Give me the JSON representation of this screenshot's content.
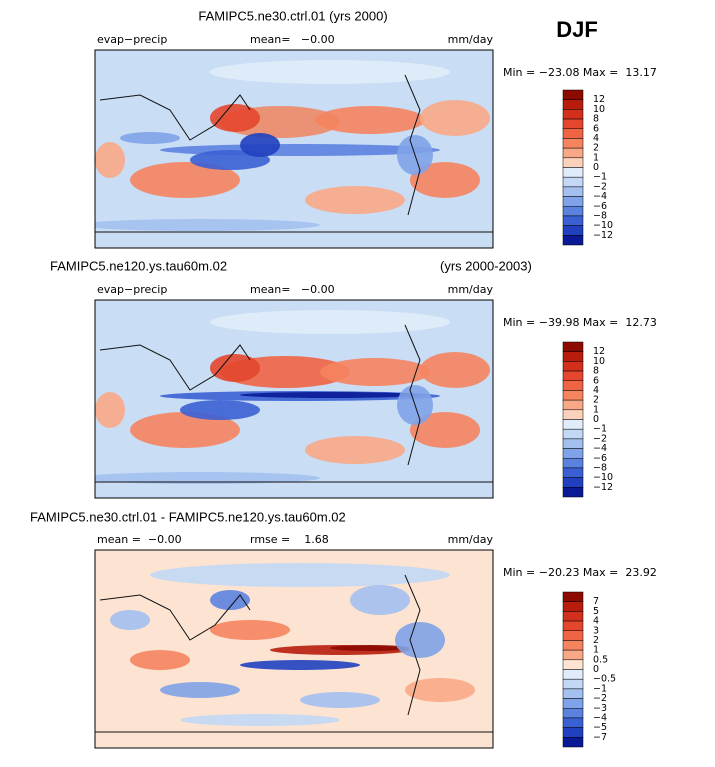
{
  "season": "DJF",
  "panels": [
    {
      "title": "FAMIPC5.ne30.ctrl.01 (yrs 2000)",
      "field": "evap−precip",
      "stat": "mean=   −0.00",
      "units": "mm/day",
      "min_max": "Min = −23.08 Max =  13.17",
      "colorbar": {
        "labels": [
          "12",
          "10",
          "8",
          "6",
          "4",
          "2",
          "1",
          "0",
          "−1",
          "−2",
          "−4",
          "−6",
          "−8",
          "−10",
          "−12"
        ],
        "colors": [
          "#8c0a00",
          "#b71c0c",
          "#d2301c",
          "#e4472e",
          "#ef6444",
          "#f5845f",
          "#f9a887",
          "#fcd1bb",
          "#e0ecfa",
          "#c2d8f5",
          "#a3c0ef",
          "#7fa2e8",
          "#5c82e0",
          "#3b60d4",
          "#2040bf",
          "#0a1a96"
        ]
      }
    },
    {
      "title": "FAMIPC5.ne120.ys.tau60m.02",
      "right_title": "(yrs 2000-2003)",
      "field": "evap−precip",
      "stat": "mean=   −0.00",
      "units": "mm/day",
      "min_max": "Min = −39.98 Max =  12.73",
      "colorbar": {
        "labels": [
          "12",
          "10",
          "8",
          "6",
          "4",
          "2",
          "1",
          "0",
          "−1",
          "−2",
          "−4",
          "−6",
          "−8",
          "−10",
          "−12"
        ],
        "colors": [
          "#8c0a00",
          "#b71c0c",
          "#d2301c",
          "#e4472e",
          "#ef6444",
          "#f5845f",
          "#f9a887",
          "#fcd1bb",
          "#e0ecfa",
          "#c2d8f5",
          "#a3c0ef",
          "#7fa2e8",
          "#5c82e0",
          "#3b60d4",
          "#2040bf",
          "#0a1a96"
        ]
      }
    },
    {
      "title": "FAMIPC5.ne30.ctrl.01 - FAMIPC5.ne120.ys.tau60m.02",
      "field": "mean =  −0.00",
      "stat": "rmse =    1.68",
      "units": "mm/day",
      "min_max": "Min = −20.23 Max =  23.92",
      "colorbar": {
        "labels": [
          "7",
          "5",
          "4",
          "3",
          "2",
          "1",
          "0.5",
          "0",
          "−0.5",
          "−1",
          "−2",
          "−3",
          "−4",
          "−5",
          "−7"
        ],
        "colors": [
          "#8c0a00",
          "#b71c0c",
          "#d2301c",
          "#e4472e",
          "#ef6444",
          "#f5845f",
          "#f9a887",
          "#fde3d2",
          "#e0ecfa",
          "#c2d8f5",
          "#a3c0ef",
          "#7fa2e8",
          "#5c82e0",
          "#3b60d4",
          "#2040bf",
          "#0a1a96"
        ]
      }
    }
  ]
}
